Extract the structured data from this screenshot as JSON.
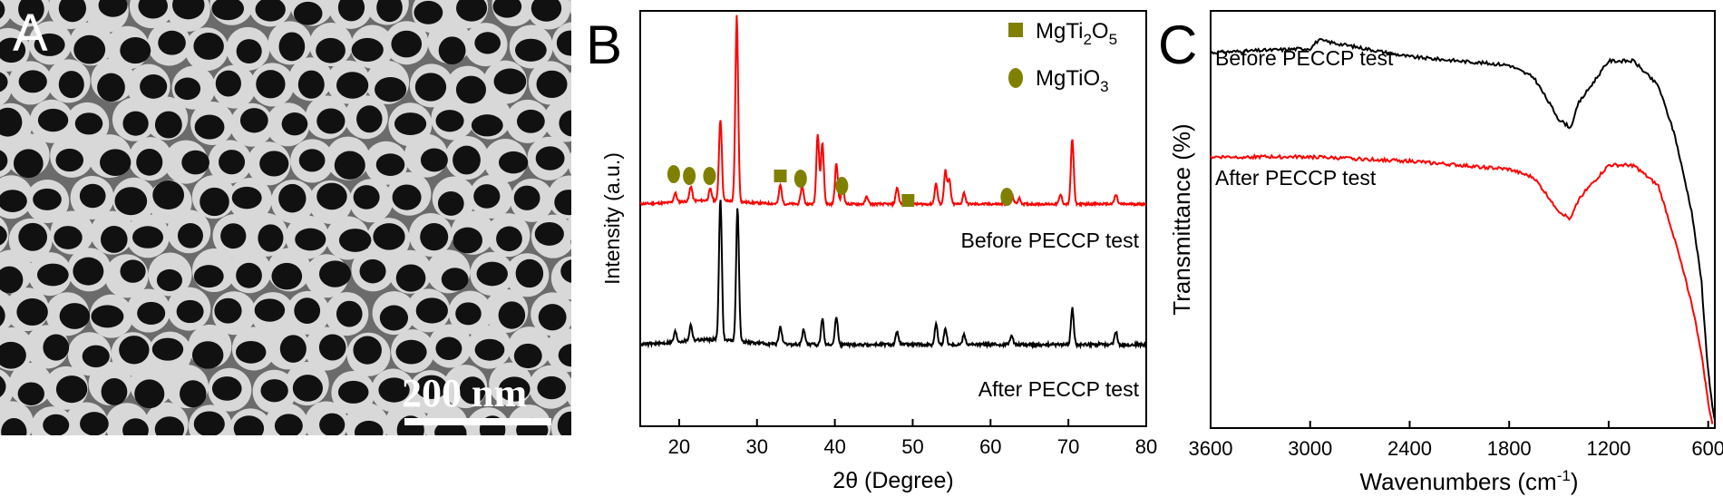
{
  "panels": {
    "a": {
      "letter": "A",
      "scale_bar_text": "200 nm"
    },
    "b": {
      "letter": "B"
    },
    "c": {
      "letter": "C"
    }
  },
  "chart_data": [
    {
      "type": "line",
      "panel": "B",
      "xlabel": "2θ (Degree)",
      "ylabel": "Intensity (a.u.)",
      "xlim": [
        15,
        80
      ],
      "xticks": [
        20,
        30,
        40,
        50,
        60,
        70,
        80
      ],
      "y_ticks_shown": false,
      "colors": {
        "before": "#ff0000",
        "after": "#000000",
        "marker": "#808000"
      },
      "legend": {
        "placement": "top-right",
        "entries": [
          {
            "label_main": "MgTi",
            "sub1": "2",
            "mid": "O",
            "sub2": "5",
            "marker": "square"
          },
          {
            "label_main": "MgTiO",
            "sub1": "3",
            "mid": "",
            "sub2": "",
            "marker": "ellipse"
          }
        ]
      },
      "series": [
        {
          "label": "Before PECCP test",
          "color": "#ff0000",
          "baseline": 0.31,
          "peaks": [
            [
              19.5,
              0.05
            ],
            [
              21.5,
              0.08
            ],
            [
              24,
              0.06
            ],
            [
              25.3,
              0.44
            ],
            [
              27.4,
              1.0
            ],
            [
              33.0,
              0.1
            ],
            [
              35.8,
              0.1
            ],
            [
              37.8,
              0.38
            ],
            [
              38.4,
              0.33
            ],
            [
              40.2,
              0.22
            ],
            [
              41.0,
              0.1
            ],
            [
              44.1,
              0.04
            ],
            [
              48.0,
              0.09
            ],
            [
              53.0,
              0.11
            ],
            [
              54.2,
              0.18
            ],
            [
              54.7,
              0.13
            ],
            [
              56.6,
              0.06
            ],
            [
              62.8,
              0.04
            ],
            [
              63.7,
              0.03
            ],
            [
              69.0,
              0.05
            ],
            [
              70.5,
              0.35
            ],
            [
              76.1,
              0.05
            ]
          ],
          "markers": [
            {
              "x": 19.3,
              "shape": "ellipse"
            },
            {
              "x": 21.3,
              "shape": "ellipse"
            },
            {
              "x": 23.9,
              "shape": "ellipse"
            },
            {
              "x": 33.0,
              "shape": "square"
            },
            {
              "x": 35.6,
              "shape": "ellipse"
            },
            {
              "x": 40.9,
              "shape": "ellipse"
            },
            {
              "x": 49.4,
              "shape": "square"
            },
            {
              "x": 62.1,
              "shape": "ellipse"
            }
          ]
        },
        {
          "label": "After PECCP test",
          "color": "#000000",
          "baseline": 0.0,
          "peaks": [
            [
              19.5,
              0.04
            ],
            [
              21.5,
              0.06
            ],
            [
              25.3,
              0.55
            ],
            [
              27.5,
              0.52
            ],
            [
              33.0,
              0.07
            ],
            [
              36.0,
              0.06
            ],
            [
              38.4,
              0.1
            ],
            [
              40.2,
              0.11
            ],
            [
              48.0,
              0.05
            ],
            [
              53.0,
              0.08
            ],
            [
              54.2,
              0.06
            ],
            [
              56.6,
              0.04
            ],
            [
              62.7,
              0.04
            ],
            [
              70.5,
              0.14
            ],
            [
              76.1,
              0.05
            ]
          ]
        }
      ]
    },
    {
      "type": "line",
      "panel": "C",
      "xlabel_main": "Wavenumbers (cm",
      "xlabel_sup": "-1",
      "xlabel_end": ")",
      "ylabel": "Transmittance (%)",
      "xlim": [
        3600,
        560
      ],
      "xticks": [
        3600,
        3000,
        2400,
        1800,
        1200,
        600
      ],
      "y_ticks_shown": false,
      "series": [
        {
          "label": "Before PECCP test",
          "color": "#000000",
          "points": [
            [
              3600,
              0.9
            ],
            [
              3000,
              0.91
            ],
            [
              2950,
              0.93
            ],
            [
              2400,
              0.89
            ],
            [
              1800,
              0.87
            ],
            [
              1650,
              0.84
            ],
            [
              1500,
              0.74
            ],
            [
              1430,
              0.72
            ],
            [
              1380,
              0.78
            ],
            [
              1200,
              0.88
            ],
            [
              1050,
              0.88
            ],
            [
              900,
              0.82
            ],
            [
              800,
              0.7
            ],
            [
              700,
              0.52
            ],
            [
              640,
              0.35
            ],
            [
              610,
              0.18
            ],
            [
              590,
              0.1
            ],
            [
              575,
              0.05
            ],
            [
              560,
              0.02
            ]
          ]
        },
        {
          "label": "After PECCP test",
          "color": "#ff0000",
          "points": [
            [
              3600,
              0.65
            ],
            [
              3000,
              0.65
            ],
            [
              2400,
              0.64
            ],
            [
              1800,
              0.62
            ],
            [
              1650,
              0.6
            ],
            [
              1500,
              0.52
            ],
            [
              1430,
              0.5
            ],
            [
              1380,
              0.55
            ],
            [
              1200,
              0.63
            ],
            [
              1050,
              0.63
            ],
            [
              900,
              0.58
            ],
            [
              800,
              0.45
            ],
            [
              700,
              0.3
            ],
            [
              650,
              0.2
            ],
            [
              620,
              0.12
            ],
            [
              600,
              0.06
            ],
            [
              575,
              0.01
            ]
          ]
        }
      ]
    }
  ]
}
